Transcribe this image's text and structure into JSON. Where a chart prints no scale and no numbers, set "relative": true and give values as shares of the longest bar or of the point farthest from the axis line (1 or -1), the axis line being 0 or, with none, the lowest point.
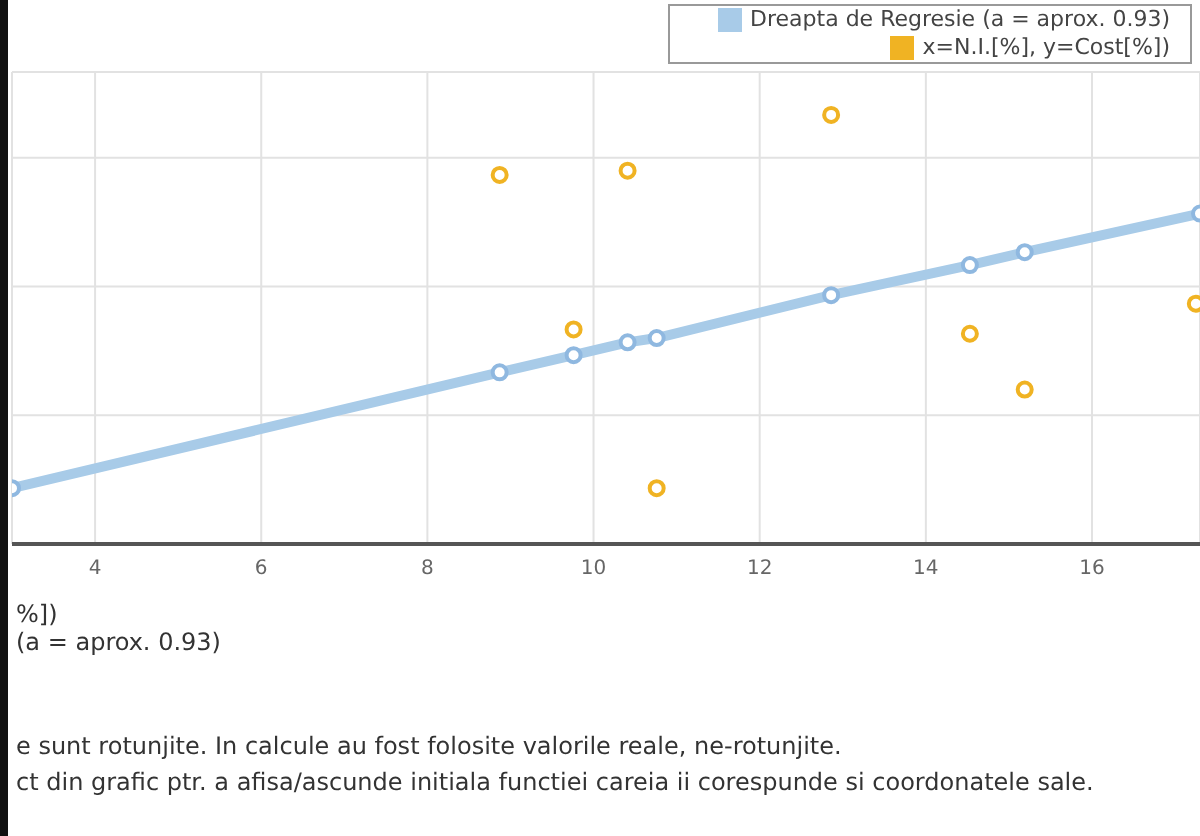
{
  "chart_data": {
    "type": "scatter",
    "relative": true,
    "grid": true,
    "legend": "top right",
    "xlim": [
      3,
      17.3
    ],
    "xticks": [
      4,
      6,
      8,
      10,
      12,
      14,
      16
    ],
    "series": [
      {
        "name": "x=N.I.[%], y=Cost[%])",
        "color": "#f0b323",
        "marker": "circle",
        "x": [
          8.87,
          9.76,
          10.41,
          10.76,
          12.86,
          14.53,
          15.19,
          17.25
        ],
        "values": [
          0.86,
          0.5,
          0.87,
          0.13,
          1,
          0.49,
          0.36,
          0.56
        ]
      },
      {
        "name": "Dreapta de Regresie (a = aprox. 0.93)",
        "color": "#a8cbe8",
        "type": "line",
        "marker": "circle",
        "x": [
          3,
          8.87,
          9.76,
          10.41,
          10.76,
          12.86,
          14.53,
          15.19,
          17.3
        ],
        "values": [
          0.13,
          0.4,
          0.44,
          0.47,
          0.48,
          0.58,
          0.65,
          0.68,
          0.77
        ]
      }
    ],
    "annotations": [
      "%])",
      "(a = aprox. 0.93)",
      "e sunt rotunjite. In calcule au fost folosite valorile reale, ne-rotunjite.",
      "ct din grafic ptr. a afisa/ascunde initiala functiei careia ii corespunde si coordonatele sale."
    ]
  }
}
